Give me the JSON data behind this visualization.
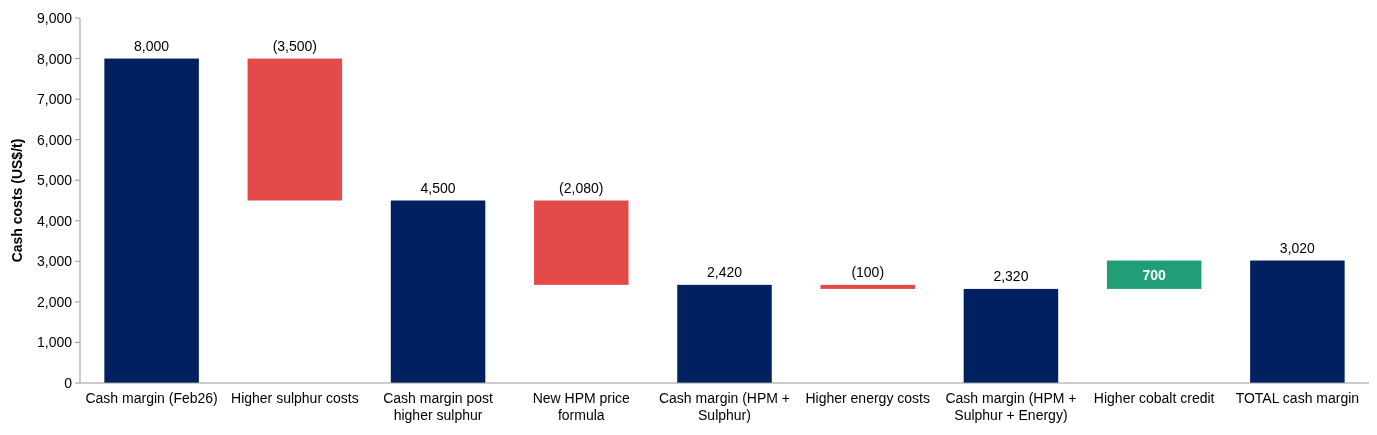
{
  "chart_data": {
    "type": "bar",
    "ylabel": "Cash costs (US$/t)",
    "categories": [
      "Cash margin (Feb26)",
      "Higher sulphur costs",
      "Cash margin post higher sulphur",
      "New HPM price formula",
      "Cash margin (HPM + Sulphur)",
      "Higher energy costs",
      "Cash margin (HPM + Sulphur + Energy)",
      "Higher cobalt credit",
      "TOTAL cash margin"
    ],
    "values": [
      8000,
      -3500,
      4500,
      -2080,
      2420,
      -100,
      2320,
      700,
      3020
    ],
    "base": [
      0,
      8000,
      0,
      4500,
      0,
      2420,
      0,
      2320,
      0
    ],
    "colors": [
      "#002060",
      "#e34b4b",
      "#002060",
      "#e34b4b",
      "#002060",
      "#e34b4b",
      "#002060",
      "#1f9e77",
      "#002060"
    ],
    "value_labels": [
      "8,000",
      "(3,500)",
      "4,500",
      "(2,080)",
      "2,420",
      "(100)",
      "2,320",
      "700",
      "3,020"
    ],
    "ylim": [
      0,
      9000
    ],
    "yticks": [
      {
        "value": 0,
        "label": "0"
      },
      {
        "value": 1000,
        "label": "1,000"
      },
      {
        "value": 2000,
        "label": "2,000"
      },
      {
        "value": 3000,
        "label": "3,000"
      },
      {
        "value": 4000,
        "label": "4,000"
      },
      {
        "value": 5000,
        "label": "5,000"
      },
      {
        "value": 6000,
        "label": "6,000"
      },
      {
        "value": 7000,
        "label": "7,000"
      },
      {
        "value": 8000,
        "label": "8,000"
      },
      {
        "value": 9000,
        "label": "9,000"
      }
    ],
    "grid": false
  }
}
